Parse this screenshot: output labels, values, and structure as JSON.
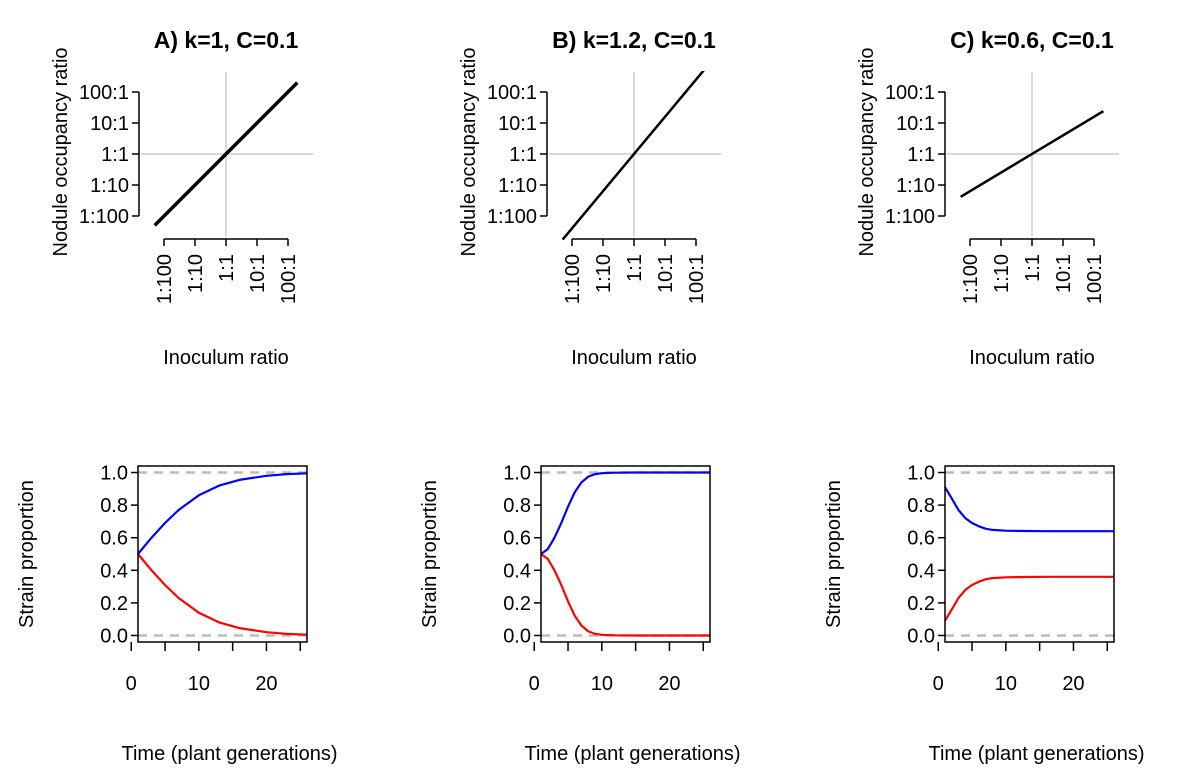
{
  "chart_data": [
    {
      "type": "line",
      "panel": "A",
      "title": "A) k=1, C=0.1",
      "xlabel": "Inoculum ratio",
      "ylabel": "Nodule occupancy ratio",
      "xscale": "log10",
      "yscale": "log10",
      "xtick_labels": [
        "1:100",
        "1:10",
        "1:1",
        "10:1",
        "100:1"
      ],
      "ytick_labels": [
        "100:1",
        "10:1",
        "1:1",
        "1:10",
        "1:100"
      ],
      "xlim": [
        "1:200",
        "200:1"
      ],
      "ylim": [
        "1:200",
        "200:1"
      ],
      "reference_lines": {
        "x": "1:1",
        "y": "1:1",
        "color": "#d9d9d9"
      },
      "series": [
        {
          "color": "#000000",
          "x": [
            "1:200",
            "200:1"
          ],
          "y": [
            "1:200",
            "200:1"
          ]
        }
      ]
    },
    {
      "type": "line",
      "panel": "B",
      "title": "B) k=1.2, C=0.1",
      "xlabel": "Inoculum ratio",
      "ylabel": "Nodule occupancy ratio",
      "xscale": "log10",
      "yscale": "log10",
      "xtick_labels": [
        "1:100",
        "1:10",
        "1:1",
        "10:1",
        "100:1"
      ],
      "ytick_labels": [
        "100:1",
        "10:1",
        "1:1",
        "1:10",
        "1:100"
      ],
      "xlim": [
        "1:200",
        "200:1"
      ],
      "ylim": [
        "1:200",
        "200:1"
      ],
      "reference_lines": {
        "x": "1:1",
        "y": "1:1",
        "color": "#d9d9d9"
      },
      "series": [
        {
          "color": "#000000",
          "x": [
            "1:200",
            "200:1"
          ],
          "y": [
            "1:575",
            "575:1"
          ]
        }
      ]
    },
    {
      "type": "line",
      "panel": "C",
      "title": "C) k=0.6, C=0.1",
      "xlabel": "Inoculum ratio",
      "ylabel": "Nodule occupancy ratio",
      "xscale": "log10",
      "yscale": "log10",
      "xtick_labels": [
        "1:100",
        "1:10",
        "1:1",
        "10:1",
        "100:1"
      ],
      "ytick_labels": [
        "100:1",
        "10:1",
        "1:1",
        "1:10",
        "1:100"
      ],
      "xlim": [
        "1:200",
        "200:1"
      ],
      "ylim": [
        "1:200",
        "200:1"
      ],
      "reference_lines": {
        "x": "1:1",
        "y": "1:1",
        "color": "#d9d9d9"
      },
      "series": [
        {
          "color": "#000000",
          "x": [
            "1:200",
            "200:1"
          ],
          "y": [
            "1:24",
            "24:1"
          ]
        }
      ]
    },
    {
      "type": "line",
      "panel": "A-bottom",
      "xlabel": "Time (plant generations)",
      "ylabel": "Strain proportion",
      "xlim": [
        1,
        26
      ],
      "ylim": [
        -0.04,
        1.04
      ],
      "xticks": [
        0,
        10,
        20
      ],
      "xminor_ticks": [
        5,
        15,
        25
      ],
      "yticks": [
        0.0,
        0.2,
        0.4,
        0.6,
        0.8,
        1.0
      ],
      "ytick_labels": [
        "0.0",
        "0.2",
        "0.4",
        "0.6",
        "0.8",
        "1.0"
      ],
      "hlines": [
        0,
        1
      ],
      "hline_color": "#bbbbbb",
      "series": [
        {
          "color": "#0000ff",
          "x": [
            1,
            3,
            5,
            7,
            10,
            13,
            16,
            20,
            23,
            26
          ],
          "y": [
            0.5,
            0.6,
            0.69,
            0.77,
            0.86,
            0.92,
            0.955,
            0.98,
            0.99,
            0.995
          ]
        },
        {
          "color": "#ff0000",
          "x": [
            1,
            3,
            5,
            7,
            10,
            13,
            16,
            20,
            23,
            26
          ],
          "y": [
            0.5,
            0.4,
            0.31,
            0.23,
            0.14,
            0.08,
            0.045,
            0.02,
            0.01,
            0.005
          ]
        }
      ]
    },
    {
      "type": "line",
      "panel": "B-bottom",
      "xlabel": "Time (plant generations)",
      "ylabel": "Strain proportion",
      "xlim": [
        1,
        26
      ],
      "ylim": [
        -0.04,
        1.04
      ],
      "xticks": [
        0,
        10,
        20
      ],
      "xminor_ticks": [
        5,
        15,
        25
      ],
      "yticks": [
        0.0,
        0.2,
        0.4,
        0.6,
        0.8,
        1.0
      ],
      "ytick_labels": [
        "0.0",
        "0.2",
        "0.4",
        "0.6",
        "0.8",
        "1.0"
      ],
      "hlines": [
        0,
        1
      ],
      "hline_color": "#bbbbbb",
      "series": [
        {
          "color": "#0000ff",
          "x": [
            1,
            2,
            3,
            4,
            5,
            6,
            7,
            8,
            9,
            10,
            12,
            15,
            20,
            26
          ],
          "y": [
            0.5,
            0.53,
            0.6,
            0.69,
            0.79,
            0.88,
            0.94,
            0.975,
            0.99,
            0.996,
            0.999,
            1.0,
            1.0,
            1.0
          ]
        },
        {
          "color": "#ff0000",
          "x": [
            1,
            2,
            3,
            4,
            5,
            6,
            7,
            8,
            9,
            10,
            12,
            15,
            20,
            26
          ],
          "y": [
            0.5,
            0.47,
            0.4,
            0.31,
            0.21,
            0.12,
            0.06,
            0.025,
            0.01,
            0.004,
            0.001,
            0.0,
            0.0,
            0.0
          ]
        }
      ]
    },
    {
      "type": "line",
      "panel": "C-bottom",
      "xlabel": "Time (plant generations)",
      "ylabel": "Strain proportion",
      "xlim": [
        1,
        26
      ],
      "ylim": [
        -0.04,
        1.04
      ],
      "xticks": [
        0,
        10,
        20
      ],
      "xminor_ticks": [
        5,
        15,
        25
      ],
      "yticks": [
        0.0,
        0.2,
        0.4,
        0.6,
        0.8,
        1.0
      ],
      "ytick_labels": [
        "0.0",
        "0.2",
        "0.4",
        "0.6",
        "0.8",
        "1.0"
      ],
      "hlines": [
        0,
        1
      ],
      "hline_color": "#bbbbbb",
      "series": [
        {
          "color": "#0000ff",
          "x": [
            1,
            2,
            3,
            4,
            5,
            6,
            7,
            8,
            10,
            13,
            16,
            20,
            26
          ],
          "y": [
            0.91,
            0.84,
            0.77,
            0.72,
            0.69,
            0.67,
            0.655,
            0.648,
            0.643,
            0.641,
            0.64,
            0.64,
            0.64
          ]
        },
        {
          "color": "#ff0000",
          "x": [
            1,
            2,
            3,
            4,
            5,
            6,
            7,
            8,
            10,
            13,
            16,
            20,
            26
          ],
          "y": [
            0.09,
            0.16,
            0.23,
            0.28,
            0.31,
            0.33,
            0.345,
            0.352,
            0.357,
            0.359,
            0.36,
            0.36,
            0.36
          ]
        }
      ]
    }
  ]
}
